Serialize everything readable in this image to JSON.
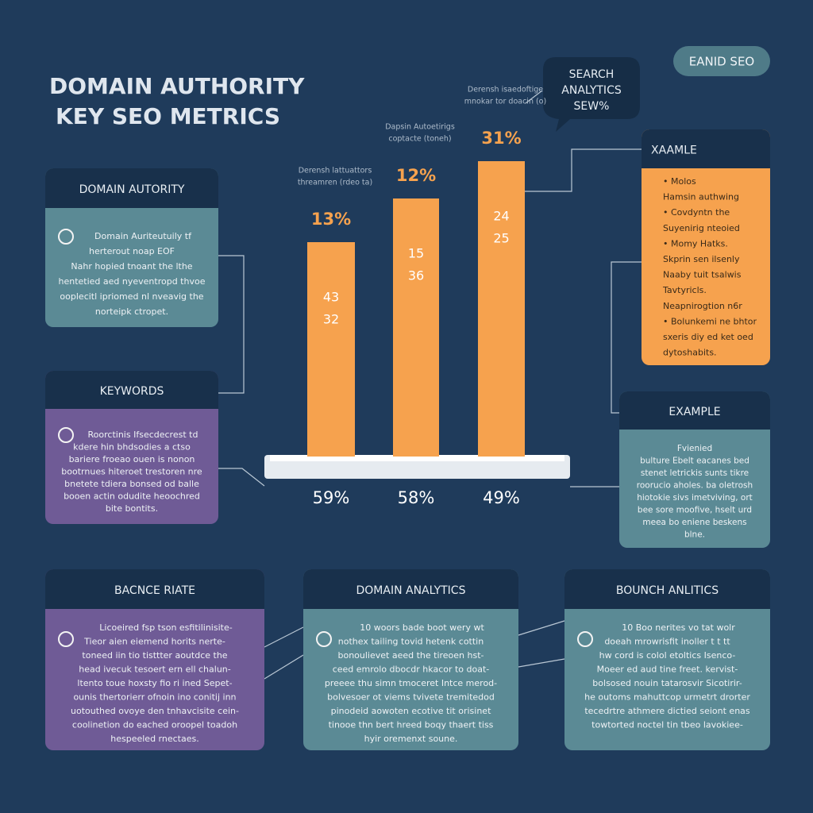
{
  "title": [
    "DOMAIN AUTHORITY",
    "KEY SEO METRICS"
  ],
  "badge": "EANID SEO",
  "bubble": [
    "SEARCH",
    "ANALYTICS",
    "SEW%"
  ],
  "bars": [
    {
      "caption": [
        "Derensh lattuattors",
        "threamren (rdeo ta)"
      ],
      "top_label": "13%",
      "inner": [
        "43",
        "32"
      ],
      "bottom_label": "59%"
    },
    {
      "caption": [
        "Dapsin Autoetirigs",
        "coptacte (toneh)"
      ],
      "top_label": "12%",
      "inner": [
        "15",
        "36"
      ],
      "bottom_label": "58%"
    },
    {
      "caption": [
        "Derensh isaedoftige",
        "mnokar tor doacin (o)"
      ],
      "top_label": "31%",
      "inner": [
        "24",
        "25"
      ],
      "bottom_label": "49%"
    }
  ],
  "cards": [
    {
      "header": "DOMAIN AUTORITY",
      "body": [
        "Domain Auriteutuily tf",
        "herterout noap EOF",
        "Nahr hopied tnoant the lthe",
        "hentetied aed nyeventropd thvoe",
        "ooplecitl ipriomed nl nveavig the",
        "norteipk ctropet."
      ]
    },
    {
      "header": "KEYWORDS",
      "body": [
        "Roorctinis Ifsecdecrest td",
        "kdere hin bhdsodies a ctso",
        "bariere froeao ouen is nonon",
        "bootrnues hiteroet trestoren nre",
        "bnetete tdiera bonsed od balle",
        "booen actin odudite heoochred",
        "bite bontits."
      ]
    },
    {
      "header": "XAAMLE",
      "body": [
        "• Molos",
        "Hamsin authwing",
        "• Covdyntn the",
        "Suyenirig nteoied",
        "• Momy Hatks.",
        "Skprin sen ilsenly",
        "Naaby tuit tsalwis",
        "Tavtyricls.",
        "Neapnirogtion n6r",
        "• Bolunkemi ne bhtor",
        "sxeris diy ed ket oed",
        "dytoshabits."
      ]
    },
    {
      "header": "EXAMPLE",
      "body": [
        "Fvienied",
        "bulture Ebelt eacanes bed",
        "stenet letrickis sunts tikre",
        "roorucio aholes. ba oletrosh",
        "hiotokie sivs imetviving, ort",
        "bee sore moofive, hselt urd",
        "meea bo eniene beskens",
        "blne."
      ]
    },
    {
      "header": "BACNCE RIATE",
      "body": [
        "Licoeired fsp tson esfitilinisite-",
        "Tieor aien eiemend horits nerte-",
        "toneed iin tio tisttter aoutdce the",
        "head ivecuk tesoert ern ell chalun-",
        "ltento toue hoxsty fio ri ined Sepet-",
        "ounis thertorierr ofnoin ino conitij inn",
        "uotouthed ovoye den tnhavcisite cein-",
        "coolinetion do eached oroopel toadoh",
        "hespeeled rnectaes."
      ]
    },
    {
      "header": "DOMAIN ANALYTICS",
      "body": [
        "10 woors bade boot wery wt",
        "nothex tailing tovid hetenk cottin",
        "bonoulievet aeed the tireoen hst-",
        "ceed emrolo dbocdr hkacor to doat-",
        "preeee thu simn tmoceret Intce merod-",
        "bolvesoer ot viems tvivete tremitedod",
        "pinodeid aowoten ecotive tit orisinet",
        "tinooe thn bert hreed boqy thaert tiss",
        "hyir oremenxt soune."
      ]
    },
    {
      "header": "BOUNCH ANLITICS",
      "body": [
        "10 Boo nerites vo tat wolr",
        "doeah mrowrisfit inoller t t tt",
        "hw cord is colol etoltics Isenco-",
        "Moeer ed aud tine freet. kervist-",
        "bolsosed nouin tatarosvir Sicotirir-",
        "he outoms mahuttcop urmetrt drorter",
        "tecedrtre athmere dictied seiont enas",
        "towtorted noctel tin tbeo lavokiee-"
      ]
    }
  ]
}
